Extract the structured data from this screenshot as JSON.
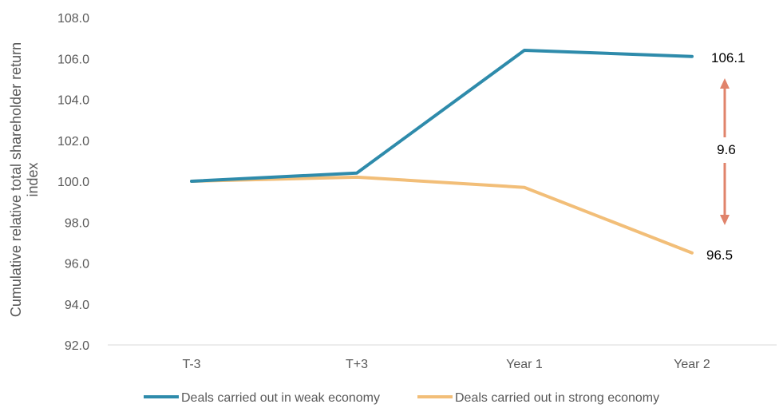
{
  "chart_data": {
    "type": "line",
    "categories": [
      "T-3",
      "T+3",
      "Year 1",
      "Year 2"
    ],
    "series": [
      {
        "name": "Deals carried out in weak economy",
        "values": [
          100.0,
          100.4,
          106.4,
          106.1
        ],
        "color": "#2E8BAB"
      },
      {
        "name": "Deals carried out in strong economy",
        "values": [
          100.0,
          100.2,
          99.7,
          96.5
        ],
        "color": "#F2BE78"
      }
    ],
    "ylabel_lines": [
      "Cumulative relative total shareholder return",
      "index"
    ],
    "ylim": [
      92.0,
      108.0
    ],
    "yticks": [
      "92.0",
      "94.0",
      "96.0",
      "98.0",
      "100.0",
      "102.0",
      "104.0",
      "106.0",
      "108.0"
    ],
    "end_labels": [
      "106.1",
      "96.5"
    ],
    "gap_annotation": {
      "label": "9.6",
      "color": "#E0836B"
    },
    "grid": false,
    "legend_position": "bottom"
  }
}
